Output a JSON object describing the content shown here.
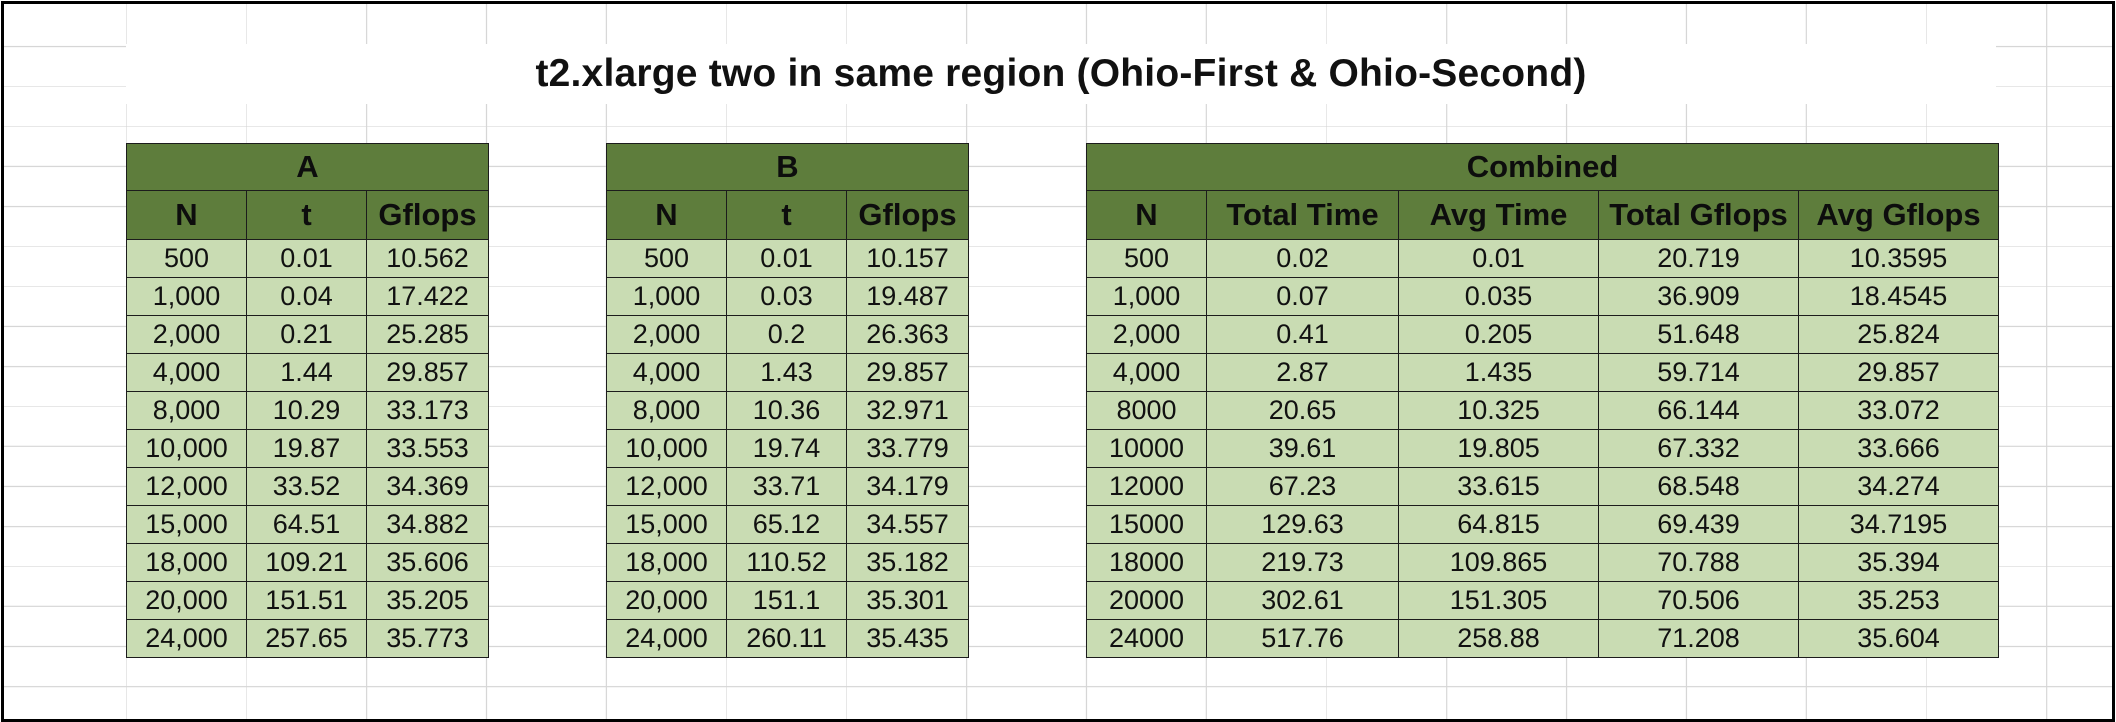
{
  "title": "t2.xlarge two in same region (Ohio-First & Ohio-Second)",
  "tables": [
    {
      "label": "A",
      "headers": [
        "N",
        "t",
        "Gflops"
      ],
      "rows": [
        [
          "500",
          "0.01",
          "10.562"
        ],
        [
          "1,000",
          "0.04",
          "17.422"
        ],
        [
          "2,000",
          "0.21",
          "25.285"
        ],
        [
          "4,000",
          "1.44",
          "29.857"
        ],
        [
          "8,000",
          "10.29",
          "33.173"
        ],
        [
          "10,000",
          "19.87",
          "33.553"
        ],
        [
          "12,000",
          "33.52",
          "34.369"
        ],
        [
          "15,000",
          "64.51",
          "34.882"
        ],
        [
          "18,000",
          "109.21",
          "35.606"
        ],
        [
          "20,000",
          "151.51",
          "35.205"
        ],
        [
          "24,000",
          "257.65",
          "35.773"
        ]
      ]
    },
    {
      "label": "B",
      "headers": [
        "N",
        "t",
        "Gflops"
      ],
      "rows": [
        [
          "500",
          "0.01",
          "10.157"
        ],
        [
          "1,000",
          "0.03",
          "19.487"
        ],
        [
          "2,000",
          "0.2",
          "26.363"
        ],
        [
          "4,000",
          "1.43",
          "29.857"
        ],
        [
          "8,000",
          "10.36",
          "32.971"
        ],
        [
          "10,000",
          "19.74",
          "33.779"
        ],
        [
          "12,000",
          "33.71",
          "34.179"
        ],
        [
          "15,000",
          "65.12",
          "34.557"
        ],
        [
          "18,000",
          "110.52",
          "35.182"
        ],
        [
          "20,000",
          "151.1",
          "35.301"
        ],
        [
          "24,000",
          "260.11",
          "35.435"
        ]
      ]
    },
    {
      "label": "Combined",
      "headers": [
        "N",
        "Total Time",
        "Avg Time",
        "Total Gflops",
        "Avg Gflops"
      ],
      "rows": [
        [
          "500",
          "0.02",
          "0.01",
          "20.719",
          "10.3595"
        ],
        [
          "1,000",
          "0.07",
          "0.035",
          "36.909",
          "18.4545"
        ],
        [
          "2,000",
          "0.41",
          "0.205",
          "51.648",
          "25.824"
        ],
        [
          "4,000",
          "2.87",
          "1.435",
          "59.714",
          "29.857"
        ],
        [
          "8000",
          "20.65",
          "10.325",
          "66.144",
          "33.072"
        ],
        [
          "10000",
          "39.61",
          "19.805",
          "67.332",
          "33.666"
        ],
        [
          "12000",
          "67.23",
          "33.615",
          "68.548",
          "34.274"
        ],
        [
          "15000",
          "129.63",
          "64.815",
          "69.439",
          "34.7195"
        ],
        [
          "18000",
          "219.73",
          "109.865",
          "70.788",
          "35.394"
        ],
        [
          "20000",
          "302.61",
          "151.305",
          "70.506",
          "35.253"
        ],
        [
          "24000",
          "517.76",
          "258.88",
          "71.208",
          "35.604"
        ]
      ]
    }
  ]
}
